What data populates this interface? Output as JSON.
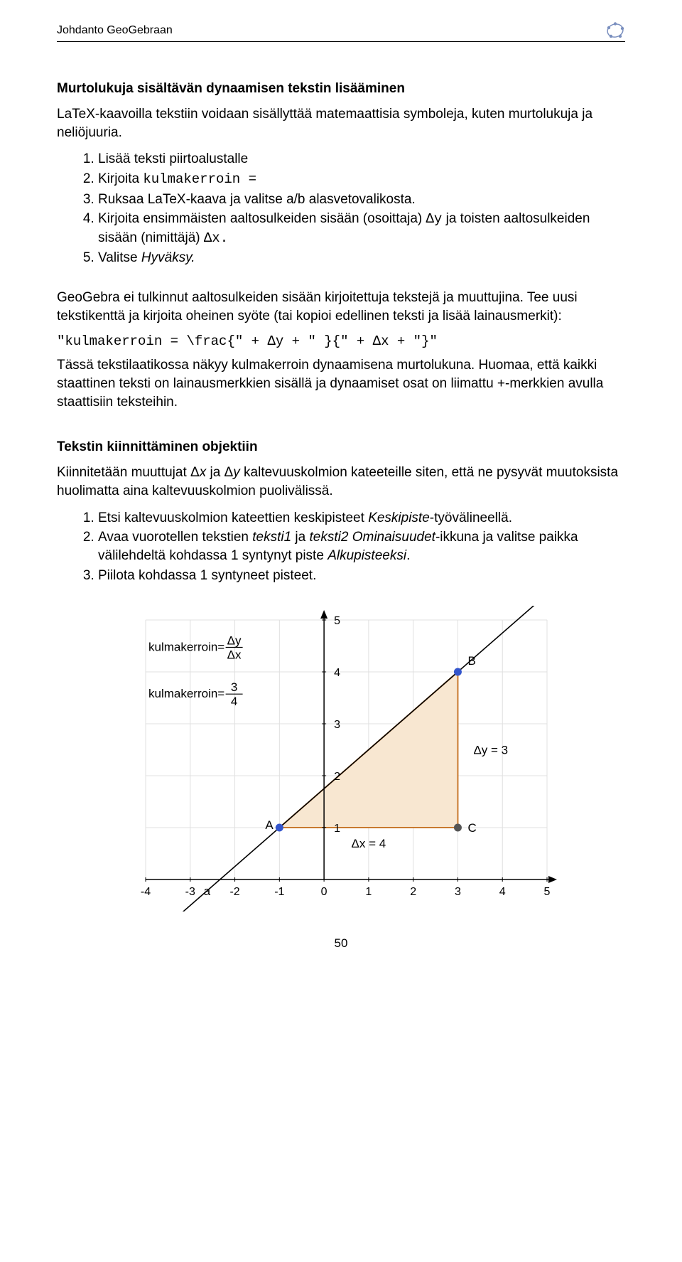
{
  "header": {
    "title": "Johdanto GeoGebraan"
  },
  "section1": {
    "title": "Murtolukuja sisältävän dynaamisen tekstin lisääminen",
    "intro": "LaTeX-kaavoilla tekstiin voidaan sisällyttää matemaattisia symboleja, kuten murtolukuja ja neliöjuuria.",
    "steps": {
      "s1": "Lisää teksti piirtoalustalle",
      "s2a": "Kirjoita ",
      "s2b": "kulmakerroin =",
      "s3": "Ruksaa LaTeX-kaava ja valitse a/b alasvetovalikosta.",
      "s4a": "Kirjoita ensimmäisten aaltosulkeiden sisään (osoittaja) ",
      "s4b": "Δy",
      "s4c": " ja toisten aaltosulkeiden sisään (nimittäjä) ",
      "s4d": "Δx.",
      "s5a": "Valitse ",
      "s5b": "Hyväksy."
    }
  },
  "section2": {
    "p1": "GeoGebra ei tulkinnut aaltosulkeiden sisään kirjoitettuja tekstejä  ja muuttujina. Tee uusi tekstikenttä ja kirjoita oheinen syöte (tai kopioi edellinen teksti ja lisää lainausmerkit):",
    "code": "\"kulmakerroin = \\frac{\" + Δy + \" }{\" + Δx + \"}\"",
    "p2": "Tässä tekstilaatikossa näkyy kulmakerroin dynaamisena murtolukuna. Huomaa, että kaikki staattinen teksti on lainausmerkkien sisällä ja dynaamiset osat on liimattu +-merkkien avulla staattisiin teksteihin."
  },
  "section3": {
    "title": "Tekstin kiinnittäminen objektiin",
    "p1a": "Kiinnitetään muuttujat Δ",
    "p1b": "x",
    "p1c": " ja Δ",
    "p1d": "y",
    "p1e": " kaltevuuskolmion kateeteille siten, että ne pysyvät muutoksista huolimatta aina kaltevuuskolmion puolivälissä.",
    "steps": {
      "s1a": "Etsi kaltevuuskolmion kateettien keskipisteet ",
      "s1b": "Keskipiste",
      "s1c": "-työvälineellä.",
      "s2a": "Avaa vuorotellen tekstien ",
      "s2b": "teksti1",
      "s2c": " ja ",
      "s2d": "teksti2 Ominaisuudet",
      "s2e": "-ikkuna ja valitse paikka välilehdeltä kohdassa 1 syntynyt piste ",
      "s2f": "Alkupisteeksi",
      "s2g": ".",
      "s3": "Piilota kohdassa 1 syntyneet pisteet."
    }
  },
  "chart": {
    "type": "line+triangle",
    "xlim": [
      -4,
      5
    ],
    "ylim": [
      0,
      5
    ],
    "xticks": [
      -4,
      -3,
      -2,
      -1,
      0,
      1,
      2,
      3,
      4,
      5
    ],
    "yticks": [
      0,
      1,
      2,
      3,
      4,
      5
    ],
    "grid_color": "#e0e0e0",
    "axis_color": "#000000",
    "background_color": "#ffffff",
    "line_color": "#000000",
    "line_points": [
      [
        -4,
        -0.75
      ],
      [
        5.5,
        4.375
      ]
    ],
    "triangle": {
      "fill": "#f8e7d1",
      "stroke": "#c97a2f",
      "stroke_width": 2,
      "vertices": {
        "A": [
          -1,
          1
        ],
        "B": [
          3,
          4
        ],
        "C": [
          3,
          1
        ]
      }
    },
    "points": {
      "A": {
        "x": -1,
        "y": 1,
        "label": "A",
        "color": "#3355cc"
      },
      "B": {
        "x": 3,
        "y": 4,
        "label": "B",
        "color": "#3355cc"
      },
      "C": {
        "x": 3,
        "y": 1,
        "label": "C",
        "color": "#555555"
      }
    },
    "a_label": "a",
    "dy_label": "Δy = 3",
    "dx_label": "Δx = 4",
    "formula1_prefix": "kulmakerroin=",
    "formula1_num": "Δy",
    "formula1_den": "Δx",
    "formula2_prefix": "kulmakerroin=",
    "formula2_num": "3",
    "formula2_den": "4"
  },
  "page_number": "50"
}
